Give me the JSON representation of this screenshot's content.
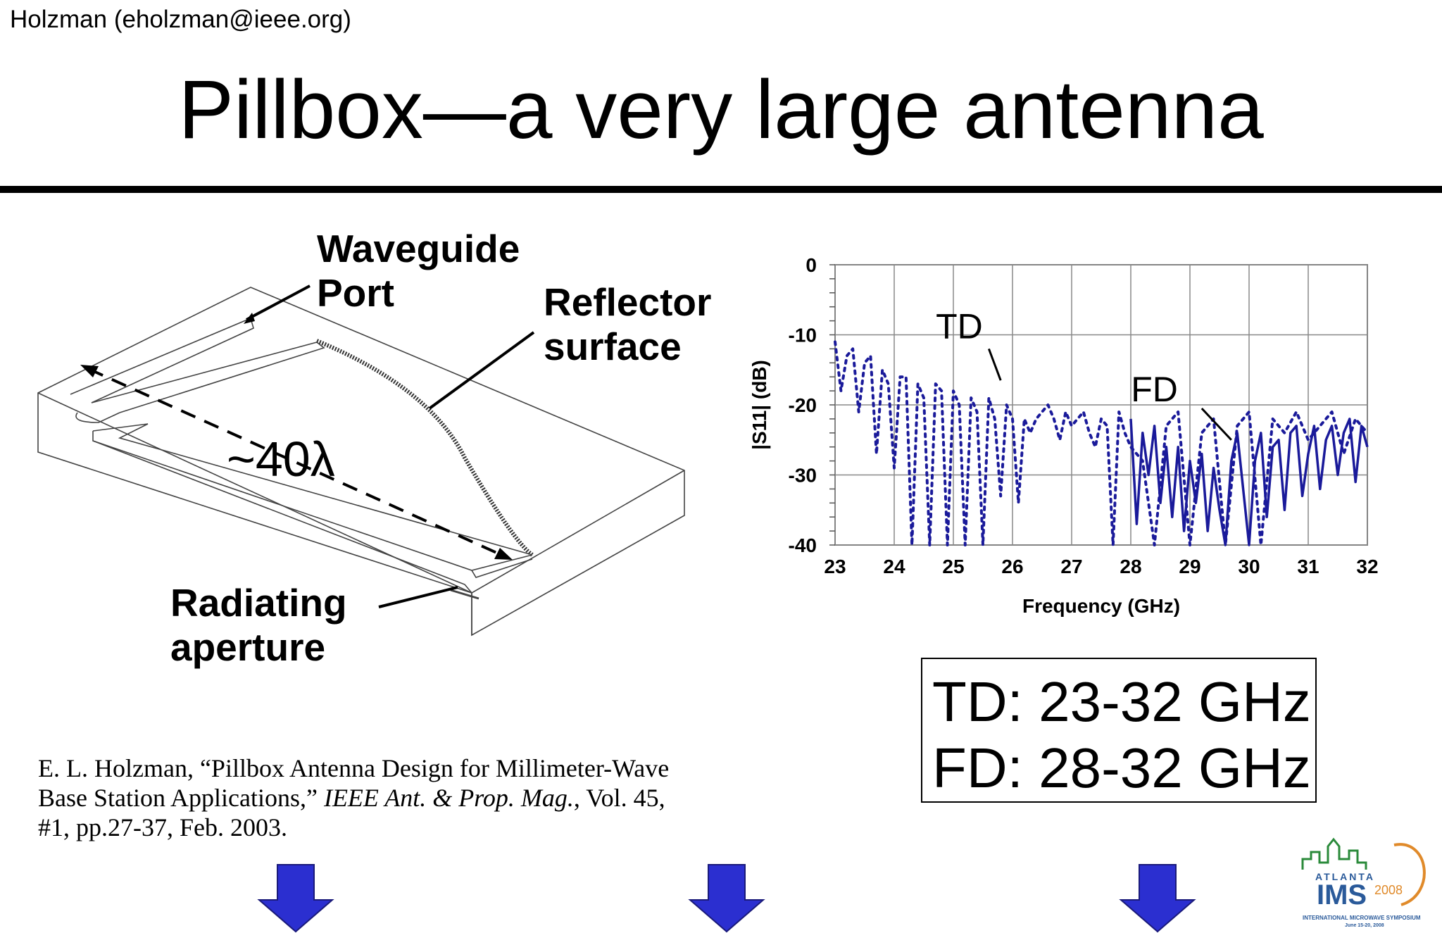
{
  "slide": {
    "author": "Holzman  (eholzman@ieee.org)",
    "title": "Pillbox—a very large antenna"
  },
  "diagram": {
    "waveguide_label": "Waveguide\nPort",
    "reflector_label": "Reflector\nsurface",
    "aperture_label": "Radiating\naperture",
    "size_label": "~40λ"
  },
  "reference": {
    "part1": "E. L. Holzman, “Pillbox Antenna Design for Millimeter-Wave Base Station Applications,” ",
    "journal": "IEEE Ant. & Prop. Mag.",
    "part2": ", Vol. 45, #1, pp.27-37, Feb. 2003."
  },
  "range_box": {
    "td": "TD: 23-32 GHz",
    "fd": "FD: 28-32 GHz"
  },
  "chart_data": {
    "type": "line",
    "xlabel": "Frequency (GHz)",
    "ylabel": "|S11| (dB)",
    "xlim": [
      23,
      32
    ],
    "ylim": [
      -40,
      0
    ],
    "xticks": [
      23,
      24,
      25,
      26,
      27,
      28,
      29,
      30,
      31,
      32
    ],
    "yticks": [
      0,
      -10,
      -20,
      -30,
      -40
    ],
    "grid": true,
    "series": [
      {
        "name": "TD",
        "style": "dotted",
        "color": "#1a1a9a",
        "x": [
          23.0,
          23.1,
          23.2,
          23.3,
          23.4,
          23.5,
          23.6,
          23.7,
          23.8,
          23.9,
          24.0,
          24.1,
          24.2,
          24.3,
          24.4,
          24.5,
          24.6,
          24.7,
          24.8,
          24.9,
          25.0,
          25.1,
          25.2,
          25.3,
          25.4,
          25.5,
          25.6,
          25.7,
          25.8,
          25.9,
          26.0,
          26.1,
          26.2,
          26.3,
          26.4,
          26.5,
          26.6,
          26.7,
          26.8,
          26.9,
          27.0,
          27.1,
          27.2,
          27.3,
          27.4,
          27.5,
          27.6,
          27.7,
          27.8,
          27.9,
          28.0,
          28.2,
          28.4,
          28.6,
          28.8,
          29.0,
          29.2,
          29.4,
          29.6,
          29.8,
          30.0,
          30.2,
          30.4,
          30.6,
          30.8,
          31.0,
          31.2,
          31.4,
          31.6,
          31.8,
          32.0
        ],
        "y": [
          -11,
          -18,
          -13,
          -12,
          -21,
          -14,
          -13,
          -27,
          -15,
          -17,
          -29,
          -16,
          -16,
          -40,
          -17,
          -19,
          -40,
          -17,
          -18,
          -40,
          -18,
          -20,
          -40,
          -19,
          -21,
          -40,
          -19,
          -22,
          -33,
          -20,
          -22,
          -34,
          -22,
          -24,
          -22,
          -21,
          -20,
          -22,
          -25,
          -21,
          -23,
          -22,
          -21,
          -24,
          -26,
          -22,
          -23,
          -40,
          -21,
          -24,
          -26,
          -28,
          -40,
          -23,
          -21,
          -40,
          -24,
          -22,
          -40,
          -23,
          -21,
          -40,
          -22,
          -24,
          -21,
          -25,
          -23,
          -21,
          -27,
          -22,
          -24
        ]
      },
      {
        "name": "FD",
        "style": "solid",
        "color": "#1a1a9a",
        "x": [
          28.0,
          28.1,
          28.2,
          28.3,
          28.4,
          28.5,
          28.6,
          28.7,
          28.8,
          28.9,
          29.0,
          29.1,
          29.2,
          29.3,
          29.4,
          29.5,
          29.6,
          29.7,
          29.8,
          29.9,
          30.0,
          30.1,
          30.2,
          30.3,
          30.4,
          30.5,
          30.6,
          30.7,
          30.8,
          30.9,
          31.0,
          31.1,
          31.2,
          31.3,
          31.4,
          31.5,
          31.6,
          31.7,
          31.8,
          31.9,
          32.0
        ],
        "y": [
          -22,
          -37,
          -24,
          -30,
          -23,
          -34,
          -26,
          -36,
          -26,
          -38,
          -28,
          -34,
          -27,
          -38,
          -29,
          -35,
          -40,
          -28,
          -24,
          -32,
          -40,
          -28,
          -24,
          -36,
          -26,
          -25,
          -35,
          -24,
          -23,
          -33,
          -27,
          -23,
          -32,
          -25,
          -23,
          -30,
          -24,
          -22,
          -31,
          -23,
          -26
        ]
      }
    ],
    "annotations": [
      "TD",
      "FD"
    ]
  }
}
